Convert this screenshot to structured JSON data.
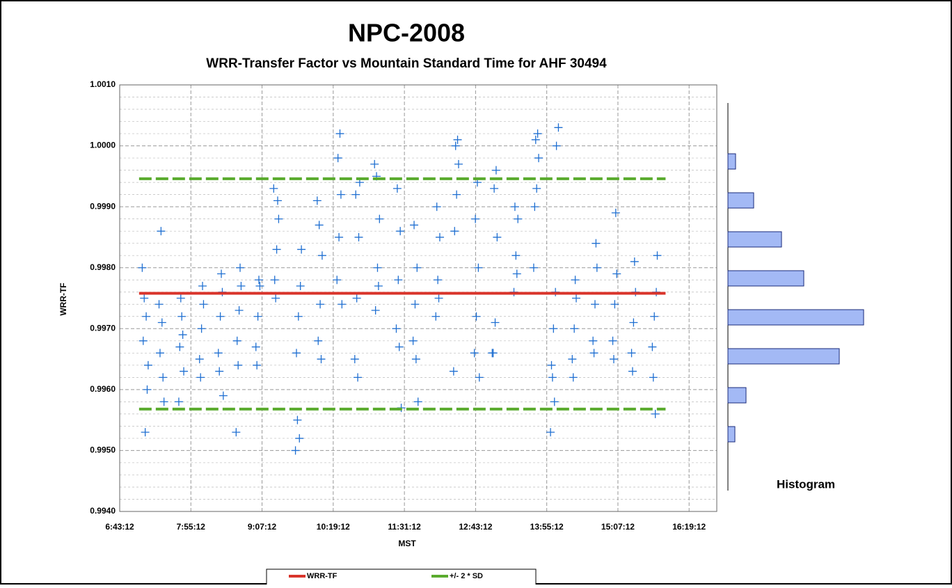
{
  "chart_data": [
    {
      "type": "scatter",
      "title": "NPC-2008",
      "subtitle": "WRR-Transfer Factor vs Mountain Standard Time for AHF 30494",
      "xlabel": "MST",
      "ylabel": "WRR-TF",
      "xlim": [
        403.2,
        1007.2
      ],
      "xticks": [
        {
          "value": 403.2,
          "label": "6:43:12"
        },
        {
          "value": 475.2,
          "label": "7:55:12"
        },
        {
          "value": 547.2,
          "label": "9:07:12"
        },
        {
          "value": 619.2,
          "label": "10:19:12"
        },
        {
          "value": 691.2,
          "label": "11:31:12"
        },
        {
          "value": 763.2,
          "label": "12:43:12"
        },
        {
          "value": 835.2,
          "label": "13:55:12"
        },
        {
          "value": 907.2,
          "label": "15:07:12"
        },
        {
          "value": 979.2,
          "label": "16:19:12"
        }
      ],
      "ylim": [
        0.994,
        1.001
      ],
      "yticks": [
        {
          "value": 0.994,
          "label": "0.9940"
        },
        {
          "value": 0.995,
          "label": "0.9950"
        },
        {
          "value": 0.996,
          "label": "0.9960"
        },
        {
          "value": 0.997,
          "label": "0.9970"
        },
        {
          "value": 0.998,
          "label": "0.9980"
        },
        {
          "value": 0.999,
          "label": "0.9990"
        },
        {
          "value": 1.0,
          "label": "1.0000"
        },
        {
          "value": 1.001,
          "label": "1.0010"
        }
      ],
      "grid": true,
      "legend": "bottom",
      "series": [
        {
          "color": "#1f6fd1",
          "marker": "+",
          "x": [
            427,
            430,
            432,
            428,
            431,
            426,
            429,
            444,
            446,
            447,
            443,
            445,
            448,
            464,
            466,
            468,
            465,
            467,
            463,
            484,
            486,
            488,
            485,
            487,
            503,
            505,
            507,
            504,
            506,
            508,
            522,
            524,
            526,
            523,
            525,
            521,
            541,
            543,
            545,
            542,
            544,
            560,
            562,
            564,
            561,
            563,
            559,
            582,
            584,
            586,
            583,
            585,
            581,
            587,
            604,
            606,
            608,
            605,
            607,
            603,
            623,
            625,
            627,
            624,
            626,
            628,
            641,
            643,
            645,
            642,
            644,
            646,
            662,
            664,
            666,
            663,
            665,
            661,
            683,
            685,
            687,
            684,
            686,
            688,
            700,
            702,
            704,
            701,
            703,
            705,
            723,
            725,
            727,
            724,
            726,
            742,
            744,
            746,
            743,
            745,
            741,
            762,
            764,
            766,
            763,
            765,
            767,
            781,
            783,
            785,
            782,
            784,
            780,
            802,
            804,
            806,
            803,
            805,
            823,
            825,
            827,
            824,
            826,
            822,
            840,
            842,
            844,
            841,
            843,
            845,
            847,
            839,
            861,
            863,
            865,
            862,
            864,
            882,
            884,
            886,
            883,
            885,
            902,
            904,
            906,
            903,
            905,
            921,
            923,
            925,
            922,
            924,
            942,
            944,
            946,
            943,
            945,
            947
          ],
          "values": [
            0.9968,
            0.9972,
            0.9964,
            0.9975,
            0.996,
            0.998,
            0.9953,
            0.9966,
            0.9971,
            0.9962,
            0.9974,
            0.9986,
            0.9958,
            0.9967,
            0.9972,
            0.9963,
            0.9975,
            0.9969,
            0.9958,
            0.9965,
            0.997,
            0.9974,
            0.9962,
            0.9977,
            0.9966,
            0.9972,
            0.9976,
            0.9963,
            0.9979,
            0.9959,
            0.9968,
            0.9973,
            0.9977,
            0.9964,
            0.998,
            0.9953,
            0.9967,
            0.9972,
            0.9977,
            0.9964,
            0.9978,
            0.9978,
            0.9983,
            0.9988,
            0.9975,
            0.9991,
            0.9993,
            0.9966,
            0.9972,
            0.9977,
            0.9955,
            0.9952,
            0.995,
            0.9983,
            0.9968,
            0.9974,
            0.9982,
            0.9987,
            0.9965,
            0.9991,
            0.9978,
            0.9985,
            0.9992,
            0.9998,
            1.0002,
            0.9974,
            0.9965,
            0.9975,
            0.9985,
            0.9992,
            0.9962,
            0.9994,
            0.9973,
            0.998,
            0.9988,
            0.9995,
            0.9977,
            0.9997,
            0.997,
            0.9978,
            0.9986,
            0.9993,
            0.9967,
            0.9957,
            0.9968,
            0.9974,
            0.998,
            0.9987,
            0.9965,
            0.9958,
            0.9972,
            0.9978,
            0.9985,
            0.999,
            0.9975,
            0.9986,
            0.9992,
            0.9997,
            1.0,
            1.0001,
            0.9963,
            0.9966,
            0.9972,
            0.998,
            0.9988,
            0.9994,
            0.9962,
            0.9966,
            0.9971,
            0.9985,
            0.9993,
            0.9996,
            0.9966,
            0.9976,
            0.9982,
            0.9988,
            0.999,
            0.9979,
            0.999,
            0.9993,
            0.9998,
            1.0001,
            1.0002,
            0.998,
            0.9964,
            0.997,
            0.9976,
            0.9962,
            0.9958,
            1.0,
            1.0003,
            0.9953,
            0.9965,
            0.997,
            0.9975,
            0.9962,
            0.9978,
            0.9968,
            0.9974,
            0.998,
            0.9966,
            0.9984,
            0.9968,
            0.9974,
            0.9979,
            0.9965,
            0.9989,
            0.9966,
            0.9971,
            0.9976,
            0.9963,
            0.9981,
            0.9967,
            0.9972,
            0.9976,
            0.9962,
            0.9956,
            0.9982
          ]
        },
        {
          "name": "WRR-TF",
          "color": "#d9342b",
          "style": "solid",
          "x": [
            422.8,
            955.4
          ],
          "values": [
            0.99758,
            0.99758
          ]
        },
        {
          "name": "+/- 2 * SD",
          "color": "#5aab2e",
          "style": "dashed",
          "x": [
            422.8,
            955.4
          ],
          "values": [
            0.99946,
            0.99946
          ]
        },
        {
          "color": "#5aab2e",
          "style": "dashed",
          "x": [
            422.8,
            955.4
          ],
          "values": [
            0.99568,
            0.99568
          ]
        }
      ]
    },
    {
      "type": "hbar",
      "title": "Histogram",
      "color": "#a3b9f5",
      "values": [
        11,
        37,
        77,
        109,
        195,
        160,
        26,
        10
      ]
    }
  ]
}
